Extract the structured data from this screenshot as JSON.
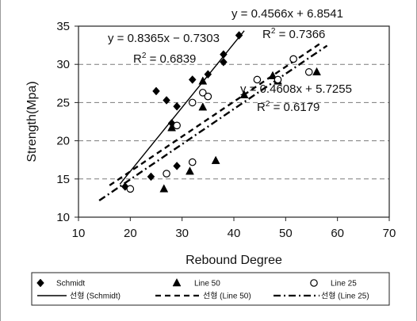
{
  "chart_data": {
    "type": "scatter",
    "xlabel": "Rebound Degree",
    "ylabel": "Strength(Mpa)",
    "xlim": [
      10,
      70
    ],
    "ylim": [
      10,
      35
    ],
    "xticks": [
      10,
      20,
      30,
      40,
      50,
      60,
      70
    ],
    "yticks": [
      10,
      15,
      20,
      25,
      30,
      35
    ],
    "grid": "horizontal dashed",
    "legend_position": "bottom",
    "series": [
      {
        "name": "Schmidt",
        "marker": "diamond",
        "color": "#000000",
        "points": [
          [
            19,
            14.0
          ],
          [
            24,
            15.3
          ],
          [
            25,
            26.5
          ],
          [
            27,
            25.3
          ],
          [
            28,
            22.3
          ],
          [
            29,
            16.7
          ],
          [
            29,
            24.5
          ],
          [
            32,
            28.0
          ],
          [
            35,
            28.7
          ],
          [
            38,
            30.3
          ],
          [
            38,
            31.3
          ],
          [
            41,
            33.8
          ]
        ]
      },
      {
        "name": "Line 50",
        "marker": "triangle",
        "color": "#000000",
        "points": [
          [
            26.5,
            13.7
          ],
          [
            28,
            21.7
          ],
          [
            31.5,
            16.0
          ],
          [
            34,
            24.4
          ],
          [
            34,
            27.8
          ],
          [
            36.5,
            17.4
          ],
          [
            42,
            26.0
          ],
          [
            47.5,
            28.5
          ],
          [
            48.5,
            27.8
          ],
          [
            56,
            29.0
          ]
        ]
      },
      {
        "name": "Line 25",
        "marker": "circle",
        "color": "#000000",
        "points": [
          [
            20,
            13.7
          ],
          [
            27,
            15.7
          ],
          [
            29,
            22.0
          ],
          [
            32,
            25.0
          ],
          [
            32,
            17.2
          ],
          [
            34,
            26.3
          ],
          [
            35,
            25.8
          ],
          [
            44.5,
            28.0
          ],
          [
            48.5,
            28.0
          ],
          [
            51.5,
            30.7
          ],
          [
            54.5,
            29.0
          ]
        ]
      }
    ],
    "trendlines": [
      {
        "name": "선형 (Schmidt)",
        "style": "solid",
        "slope": 0.8365,
        "intercept": -0.7303,
        "x_range": [
          18,
          42
        ],
        "equation": "y = 0.8365x − 0.7303",
        "r2_label": "R",
        "r2_value": " = 0.6839"
      },
      {
        "name": "선형 (Line 50)",
        "style": "dash",
        "slope": 0.4566,
        "intercept": 6.8541,
        "x_range": [
          16,
          57
        ],
        "equation": "y = 0.4566x + 6.8541",
        "r2_label": "R",
        "r2_value": " = 0.7366"
      },
      {
        "name": "선형 (Line 25)",
        "style": "dashdot",
        "slope": 0.4608,
        "intercept": 5.7255,
        "x_range": [
          14,
          58
        ],
        "equation": "y = 0.4608x + 5.7255",
        "r2_label": "R",
        "r2_value": " = 0.6179"
      }
    ]
  }
}
